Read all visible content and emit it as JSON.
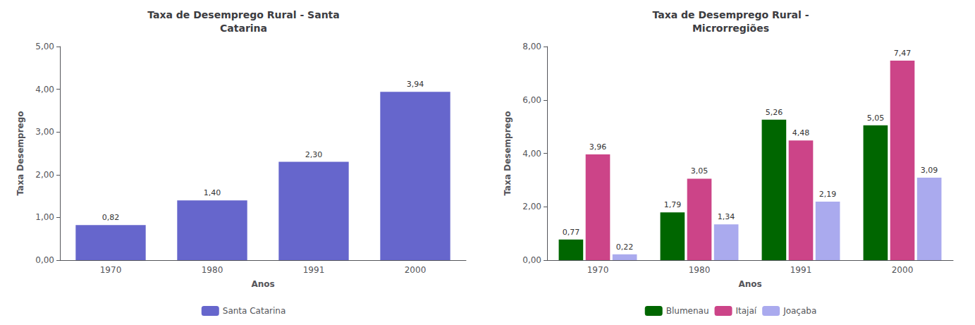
{
  "chart_data": [
    {
      "type": "bar",
      "title": "Taxa de Desemprego Rural - Santa\nCatarina",
      "x_label": "Anos",
      "y_label": "Taxa Desemprego",
      "categories": [
        "1970",
        "1980",
        "1991",
        "2000"
      ],
      "series": [
        {
          "name": "Santa Catarina",
          "color": "#6666cc",
          "values": [
            0.82,
            1.4,
            2.3,
            3.94
          ],
          "value_labels": [
            "0,82",
            "1,40",
            "2,30",
            "3,94"
          ]
        }
      ],
      "ylim": [
        0,
        5.0
      ],
      "yticks": [
        {
          "value": 0.0,
          "label": "0,00"
        },
        {
          "value": 1.0,
          "label": "1,00"
        },
        {
          "value": 2.0,
          "label": "2,00"
        },
        {
          "value": 3.0,
          "label": "3,00"
        },
        {
          "value": 4.0,
          "label": "4,00"
        },
        {
          "value": 5.0,
          "label": "5,00"
        }
      ],
      "grid": false,
      "legend": "bottom",
      "data_labels": true
    },
    {
      "type": "bar",
      "title": "Taxa de Desemprego Rural -\nMicrorregiões",
      "x_label": "Anos",
      "y_label": "Taxa Desemprego",
      "categories": [
        "1970",
        "1980",
        "1991",
        "2000"
      ],
      "series": [
        {
          "name": "Blumenau",
          "color": "#006600",
          "values": [
            0.77,
            1.79,
            5.26,
            5.05
          ],
          "value_labels": [
            "0,77",
            "1,79",
            "5,26",
            "5,05"
          ]
        },
        {
          "name": "Itajaí",
          "color": "#cc4488",
          "values": [
            3.96,
            3.05,
            4.48,
            7.47
          ],
          "value_labels": [
            "3,96",
            "3,05",
            "4,48",
            "7,47"
          ]
        },
        {
          "name": "Joaçaba",
          "color": "#aaaaee",
          "values": [
            0.22,
            1.34,
            2.19,
            3.09
          ],
          "value_labels": [
            "0,22",
            "1,34",
            "2,19",
            "3,09"
          ]
        }
      ],
      "ylim": [
        0,
        8.0
      ],
      "yticks": [
        {
          "value": 0.0,
          "label": "0,00"
        },
        {
          "value": 2.0,
          "label": "2,00"
        },
        {
          "value": 4.0,
          "label": "4,00"
        },
        {
          "value": 6.0,
          "label": "6,00"
        },
        {
          "value": 8.0,
          "label": "8,00"
        }
      ],
      "grid": false,
      "legend": "bottom",
      "data_labels": true
    }
  ]
}
